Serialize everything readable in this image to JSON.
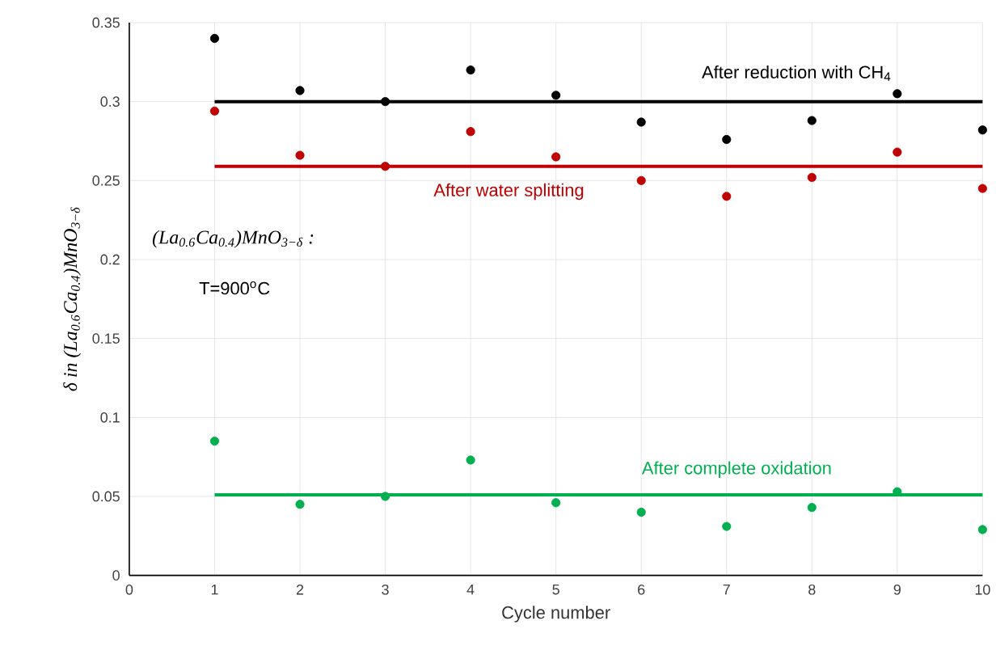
{
  "chart_data": {
    "type": "scatter",
    "xlabel": "Cycle number",
    "ylabel": "δ in (La$_{0.6}$Ca$_{0.4}$)MnO$_{3−δ}$",
    "x": [
      1,
      2,
      3,
      4,
      5,
      6,
      7,
      8,
      9,
      10
    ],
    "series": [
      {
        "color": "#000000",
        "values": [
          0.34,
          0.307,
          0.3,
          0.32,
          0.304,
          0.287,
          0.276,
          0.288,
          0.305,
          0.282
        ]
      },
      {
        "color": "#c00000",
        "values": [
          0.294,
          0.266,
          0.259,
          0.281,
          0.265,
          0.25,
          0.24,
          0.252,
          0.268,
          0.245
        ]
      },
      {
        "color": "#00b050",
        "values": [
          0.085,
          0.045,
          0.05,
          0.073,
          0.046,
          0.04,
          0.031,
          0.043,
          0.053,
          0.029
        ]
      },
      {
        "type": "line",
        "name": "After reduction with CH$_{4}$",
        "color": "#000000",
        "marker": "none",
        "values": [
          0.3,
          0.3,
          0.3,
          0.3,
          0.3,
          0.3,
          0.3,
          0.3,
          0.3,
          0.3
        ]
      },
      {
        "type": "line",
        "name": "After water splitting",
        "color": "#c00000",
        "marker": "none",
        "values": [
          0.259,
          0.259,
          0.259,
          0.259,
          0.259,
          0.259,
          0.259,
          0.259,
          0.259,
          0.259
        ]
      },
      {
        "type": "line",
        "name": "After complete oxidation",
        "color": "#00b050",
        "marker": "none",
        "values": [
          0.051,
          0.051,
          0.051,
          0.051,
          0.051,
          0.051,
          0.051,
          0.051,
          0.051,
          0.051
        ]
      }
    ],
    "annotations": [
      "(La$_{0.6}$Ca$_{0.4}$)MnO$_{3−δ}$ :",
      "T=900$^{o}$C"
    ],
    "xlim": [
      0,
      10
    ],
    "ylim": [
      0,
      0.35
    ],
    "xticks": [
      0,
      1,
      2,
      3,
      4,
      5,
      6,
      7,
      8,
      9,
      10
    ],
    "yticks": [
      0,
      0.05,
      0.1,
      0.15,
      0.2,
      0.25,
      0.3,
      0.35
    ],
    "grid": true,
    "marker": "circle"
  }
}
